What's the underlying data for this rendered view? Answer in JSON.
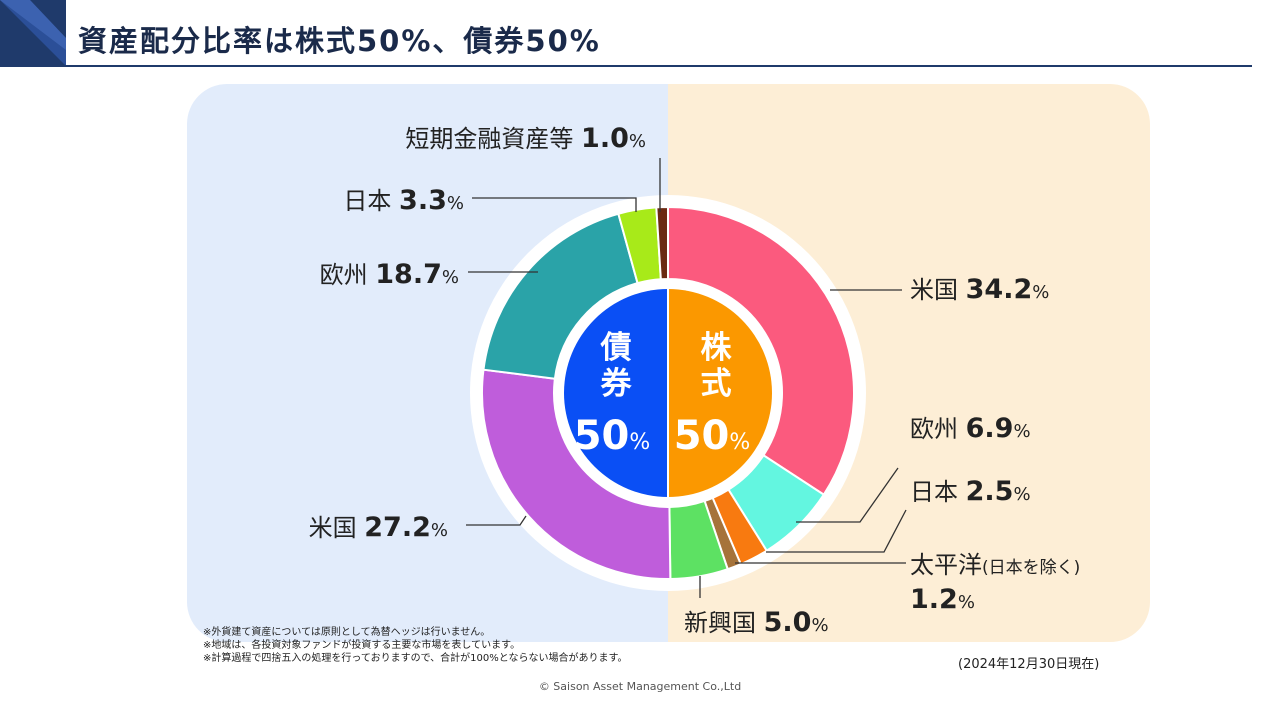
{
  "header": {
    "title": "資産配分比率は株式50%、債券50%",
    "colors": {
      "navy": "#1f3a6b",
      "accent": "#2b4f98"
    }
  },
  "chart_data": {
    "type": "pie",
    "inner": [
      {
        "name": "債券",
        "value": 50,
        "color": "#0a4ff5"
      },
      {
        "name": "株式",
        "value": 50,
        "color": "#fb9800"
      }
    ],
    "outer": [
      {
        "name": "米国",
        "value": 34.2,
        "group": "株式",
        "color": "#fb5a7e"
      },
      {
        "name": "欧州",
        "value": 6.9,
        "group": "株式",
        "color": "#63f6e0"
      },
      {
        "name": "日本",
        "value": 2.5,
        "group": "株式",
        "color": "#f87a10"
      },
      {
        "name": "太平洋(日本を除く)",
        "value": 1.2,
        "group": "株式",
        "color": "#a6733a"
      },
      {
        "name": "新興国",
        "value": 5.0,
        "group": "株式",
        "color": "#5de163"
      },
      {
        "name": "米国",
        "value": 27.2,
        "group": "債券",
        "color": "#bf5ddb"
      },
      {
        "name": "欧州",
        "value": 18.7,
        "group": "債券",
        "color": "#2aa3a8"
      },
      {
        "name": "日本",
        "value": 3.3,
        "group": "債券",
        "color": "#a8ea19"
      },
      {
        "name": "短期金融資産等",
        "value": 1.0,
        "group": "債券",
        "color": "#6b2a12"
      }
    ],
    "labels": [
      {
        "name": "短期金融資産等",
        "value": "1.0",
        "unit": "%"
      },
      {
        "name": "日本",
        "value": "3.3",
        "unit": "%"
      },
      {
        "name": "欧州",
        "value": "18.7",
        "unit": "%"
      },
      {
        "name": "米国",
        "value": "27.2",
        "unit": "%"
      },
      {
        "name": "米国",
        "value": "34.2",
        "unit": "%"
      },
      {
        "name": "欧州",
        "value": "6.9",
        "unit": "%"
      },
      {
        "name": "日本",
        "value": "2.5",
        "unit": "%"
      },
      {
        "name": "太平洋",
        "sub": "(日本を除く)",
        "value": "1.2",
        "unit": "%"
      },
      {
        "name": "新興国",
        "value": "5.0",
        "unit": "%"
      }
    ],
    "center_labels": [
      {
        "name": "債券",
        "value": "50",
        "unit": "%"
      },
      {
        "name": "株式",
        "value": "50",
        "unit": "%"
      }
    ]
  },
  "notes": [
    "※外貨建て資産については原則として為替ヘッジは行いません。",
    "※地域は、各投資対象ファンドが投資する主要な市場を表しています。",
    "※計算過程で四捨五入の処理を行っておりますので、合計が100%とならない場合があります。"
  ],
  "as_of": "(2024年12月30日現在)",
  "copyright": "© Saison Asset Management Co.,Ltd"
}
